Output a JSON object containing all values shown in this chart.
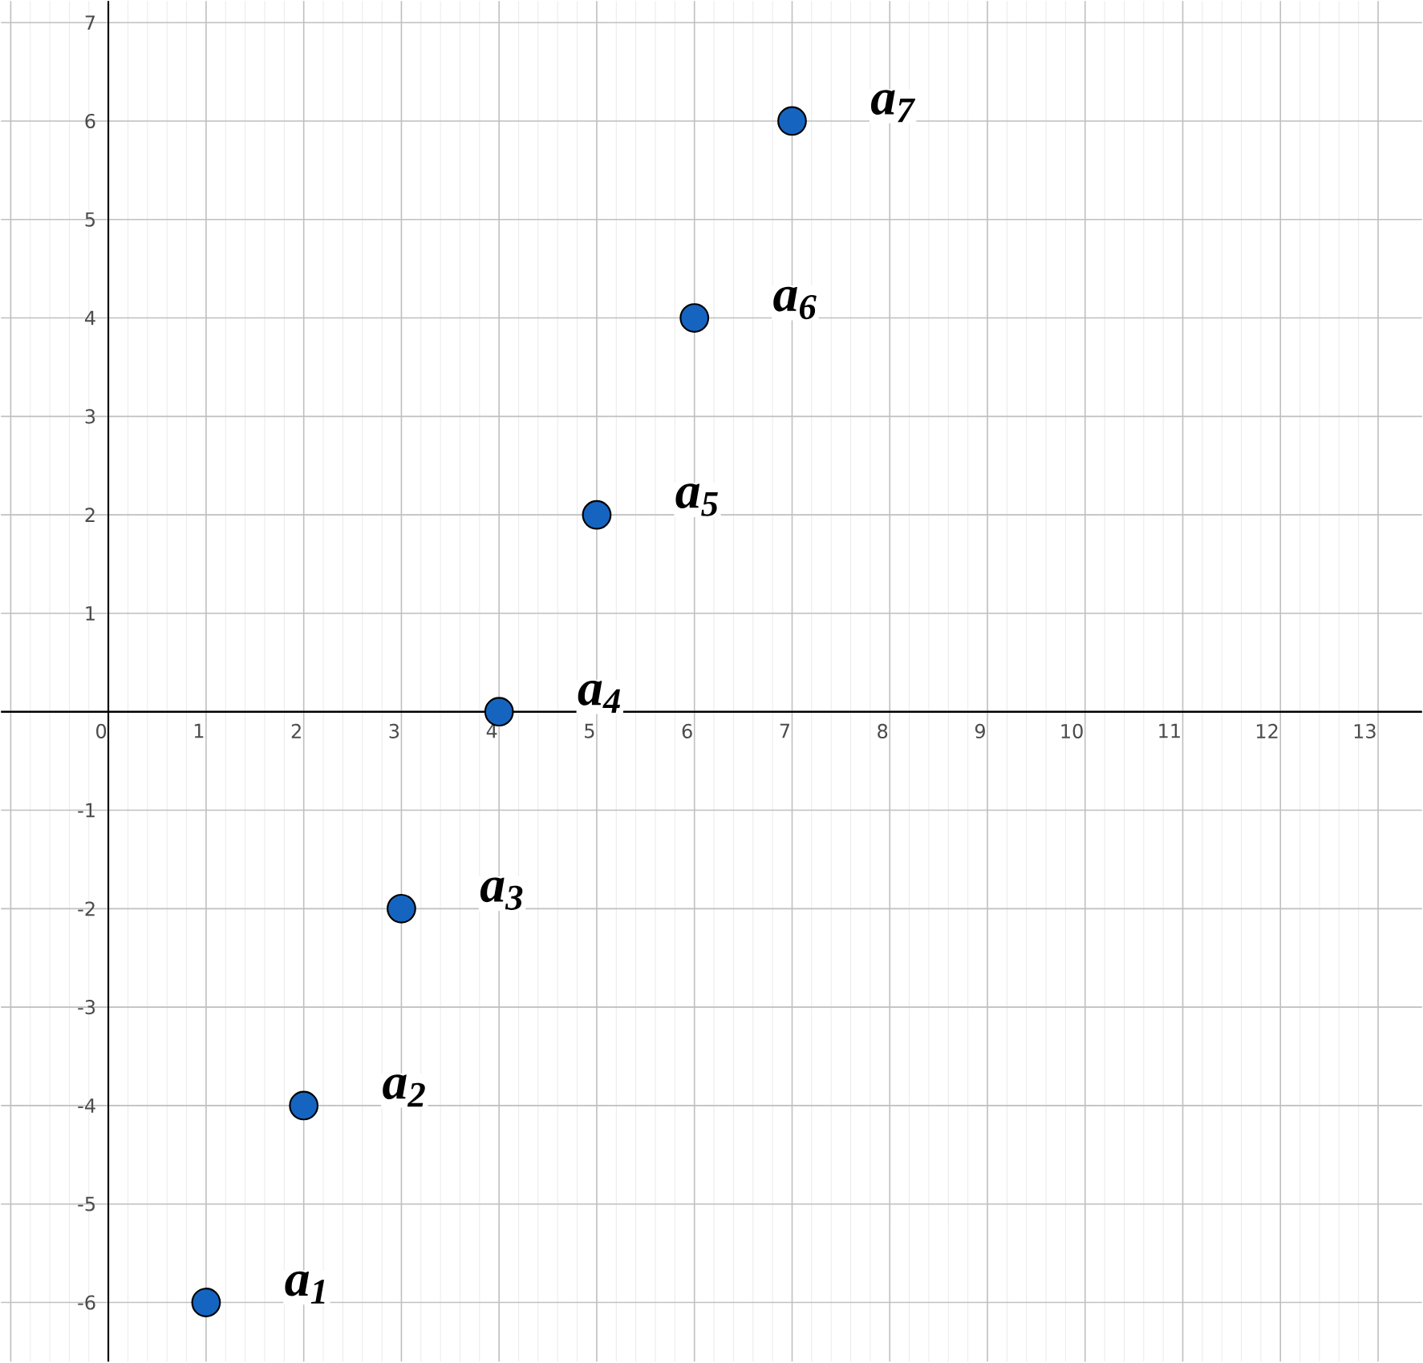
{
  "chart_data": {
    "type": "scatter",
    "x": [
      1,
      2,
      3,
      4,
      5,
      6,
      7
    ],
    "values": [
      -6,
      -4,
      -2,
      0,
      2,
      4,
      6
    ],
    "color": "#1565c0",
    "marker": "circle",
    "xlim": [
      -1.1,
      13.45
    ],
    "ylim": [
      -6.6,
      7.22
    ],
    "xticks": [
      {
        "value": -1,
        "label": null
      },
      0,
      1,
      2,
      3,
      4,
      5,
      6,
      7,
      8,
      9,
      10,
      11,
      12,
      13
    ],
    "yticks": [
      -6,
      -5,
      -4,
      -3,
      -2,
      -1,
      1,
      2,
      3,
      4,
      5,
      6,
      7
    ],
    "grid": true,
    "annotations": [
      {
        "text": "a$_{1}$",
        "x": 1,
        "y": -6
      },
      {
        "text": "a$_{2}$",
        "x": 2,
        "y": -4
      },
      {
        "text": "a$_{3}$",
        "x": 3,
        "y": -2
      },
      {
        "text": "a$_{4}$",
        "x": 4,
        "y": 0
      },
      {
        "text": "a$_{5}$",
        "x": 5,
        "y": 2
      },
      {
        "text": "a$_{6}$",
        "x": 6,
        "y": 4
      },
      {
        "text": "a$_{7}$",
        "x": 7,
        "y": 6
      }
    ]
  }
}
